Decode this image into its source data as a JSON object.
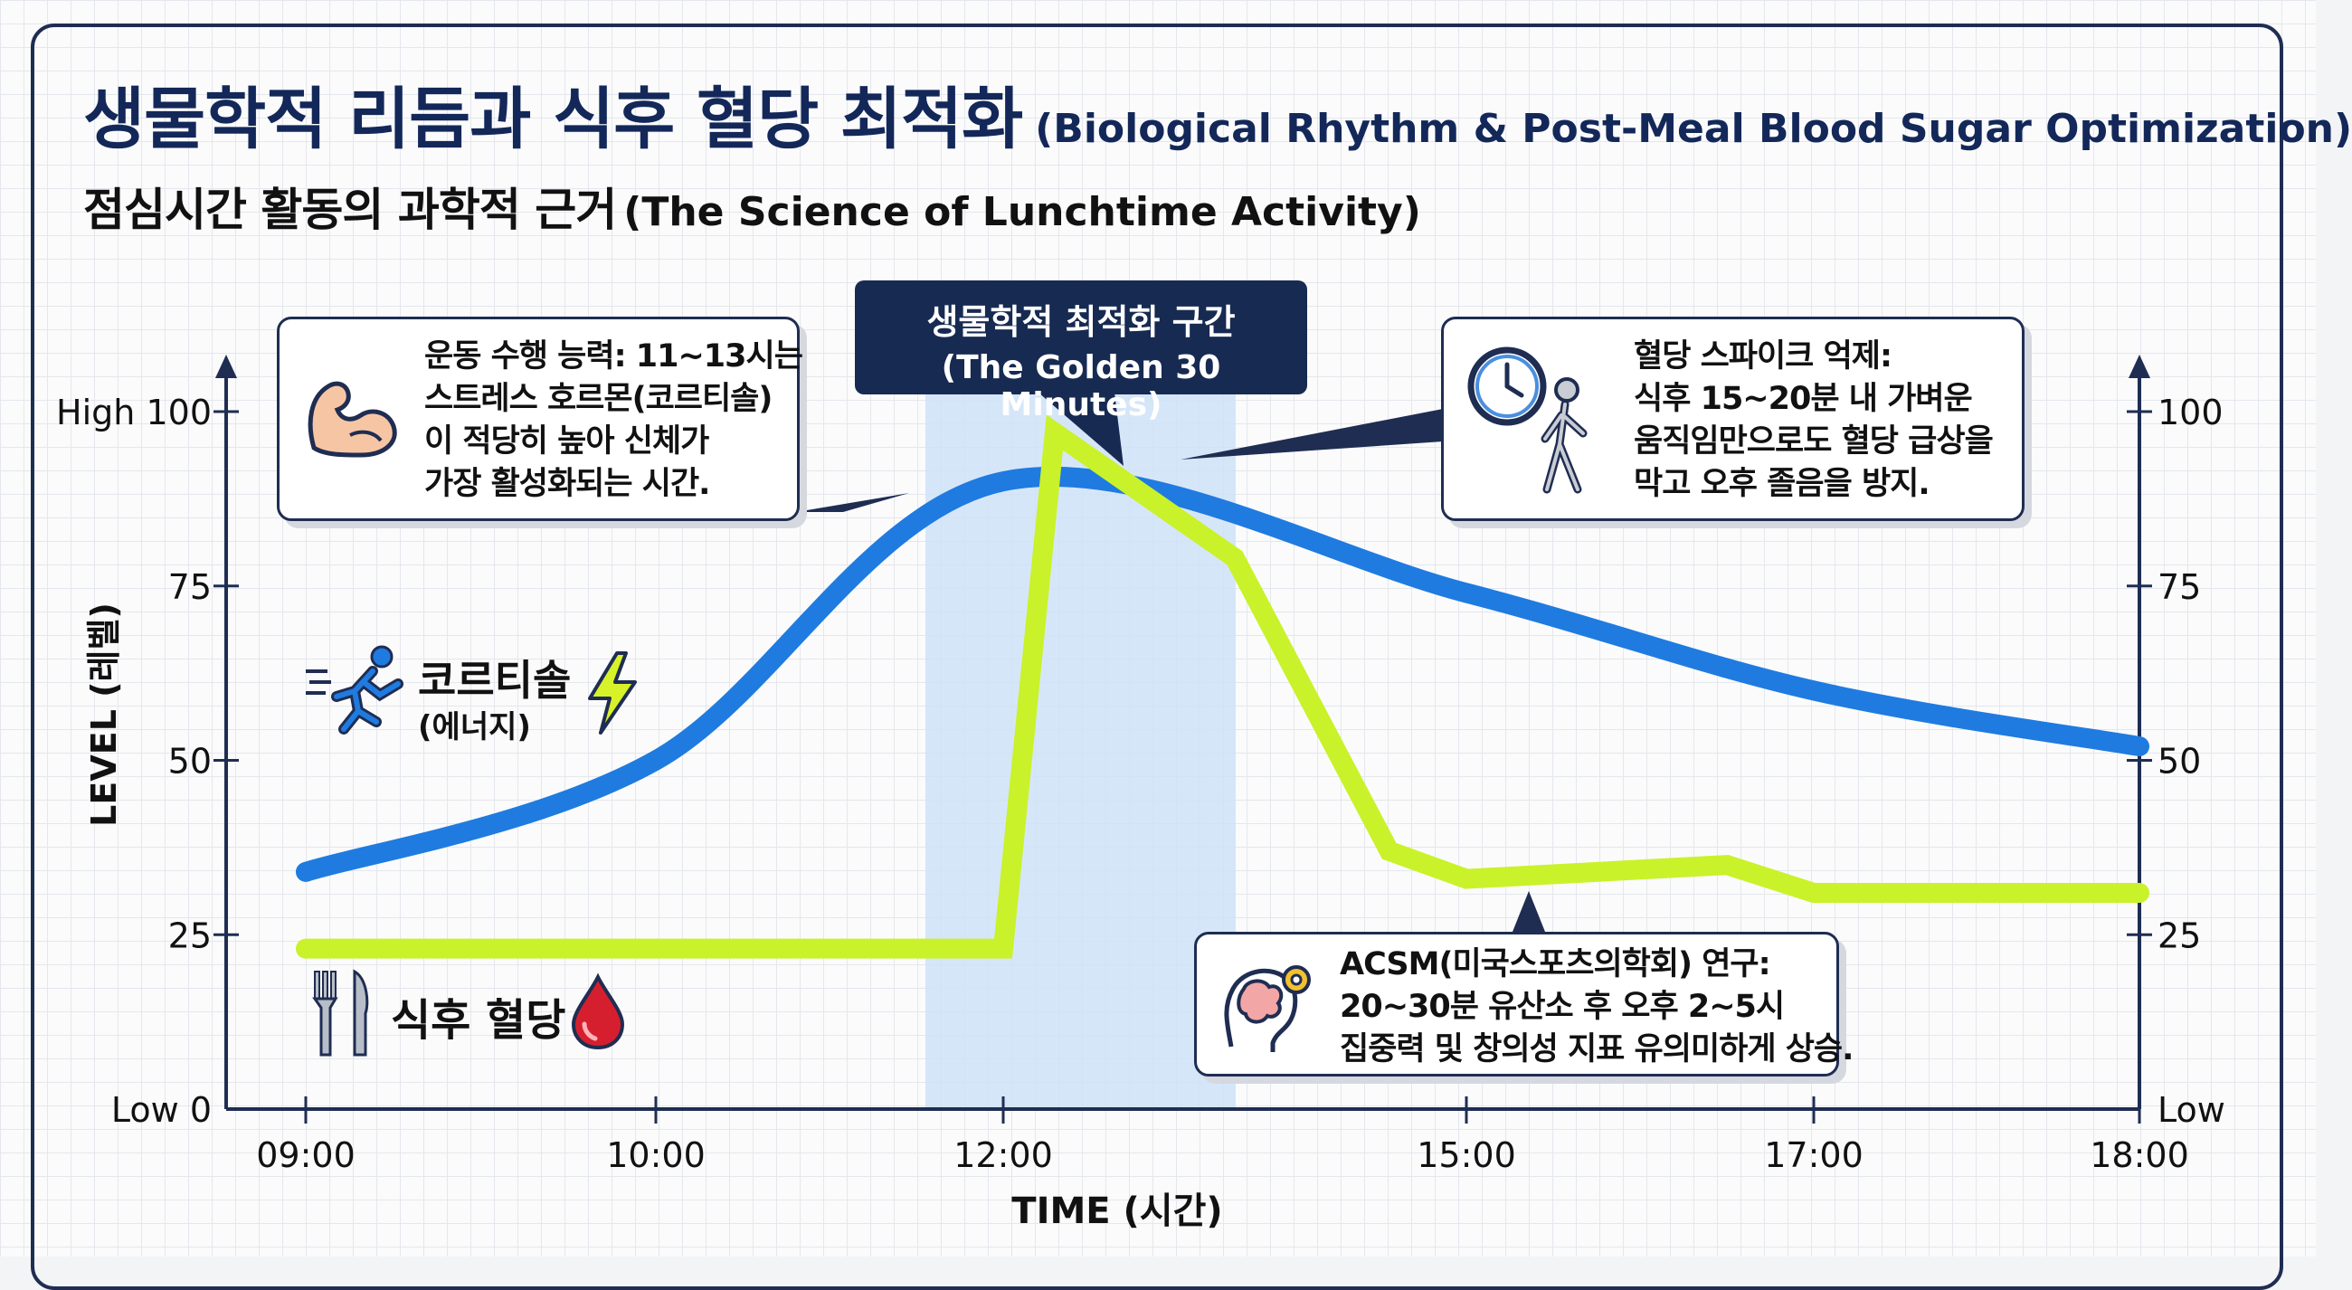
{
  "title": {
    "ko": "생물학적 리듬과 식후 혈당 최적화",
    "en": "(Biological Rhythm & Post-Meal Blood Sugar Optimization)"
  },
  "subtitle": {
    "ko": "점심시간 활동의 과학적 근거",
    "en": "(The Science of Lunchtime Activity)"
  },
  "golden_zone": {
    "line1": "생물학적 최적화 구간",
    "line2": "(The Golden 30 Minutes)"
  },
  "callouts": {
    "exercise": [
      "운동 수행 능력: 11~13시는",
      "스트레스 호르몬(코르티솔)",
      "이 적당히 높아 신체가",
      "가장 활성화되는 시간."
    ],
    "spike": [
      "혈당 스파이크 억제:",
      "식후 15~20분 내 가벼운",
      "움직임만으로도 혈당 급상을",
      "막고 오후 졸음을 방지."
    ],
    "acsm": [
      "ACSM(미국스포츠의학회) 연구:",
      "20~30분 유산소 후 오후 2~5시",
      "집중력 및 창의성 지표 유의미하게 상승."
    ]
  },
  "legend": {
    "cortisol": {
      "label": "코르티솔",
      "sub": "(에너지)"
    },
    "glucose": {
      "label": "식후 혈당"
    }
  },
  "icons": {
    "exercise": "flexed-bicep-icon",
    "spike": "clock-icon",
    "walk": "walking-person-icon",
    "acsm": "brain-gear-icon",
    "cortisol": "running-person-icon",
    "energy": "lightning-icon",
    "utensils": "fork-knife-icon",
    "blood": "blood-drop-icon"
  },
  "chart_data": {
    "type": "line",
    "x": [
      "09:00",
      "10:00",
      "12:00",
      "15:00",
      "17:00",
      "18:00"
    ],
    "xlabel": "TIME (시간)",
    "ylabel": "LEVEL (레벨)",
    "ylim": [
      0,
      100
    ],
    "y_ticks": [
      0,
      25,
      50,
      75,
      100
    ],
    "y_tick_labels_left": [
      "Low 0",
      "25",
      "50",
      "75",
      "High 100"
    ],
    "y_tick_labels_right": [
      "Low",
      "25",
      "50",
      "75",
      "100"
    ],
    "highlight_band": {
      "label": "(The Golden 30 Minutes)"
    },
    "series": [
      {
        "name": "코르티솔",
        "color": "#1f7be0",
        "points": [
          {
            "x": "09:00",
            "y": 34
          },
          {
            "x": "10:00",
            "y": 50
          },
          {
            "x": "12:00",
            "y": 90
          },
          {
            "x": "15:00",
            "y": 74
          },
          {
            "x": "17:00",
            "y": 60
          },
          {
            "x": "18:00",
            "y": 52
          }
        ]
      },
      {
        "name": "식후 혈당",
        "color": "#c9f22a",
        "points": [
          {
            "x": "09:00",
            "y": 23
          },
          {
            "x": "10:00",
            "y": 23
          },
          {
            "x": "12:00",
            "y": 23
          },
          {
            "x": "12:20",
            "y": 97
          },
          {
            "x": "13:30",
            "y": 79
          },
          {
            "x": "14:30",
            "y": 37
          },
          {
            "x": "15:00",
            "y": 33
          },
          {
            "x": "16:30",
            "y": 35
          },
          {
            "x": "17:00",
            "y": 31
          },
          {
            "x": "18:00",
            "y": 31
          }
        ]
      }
    ]
  }
}
